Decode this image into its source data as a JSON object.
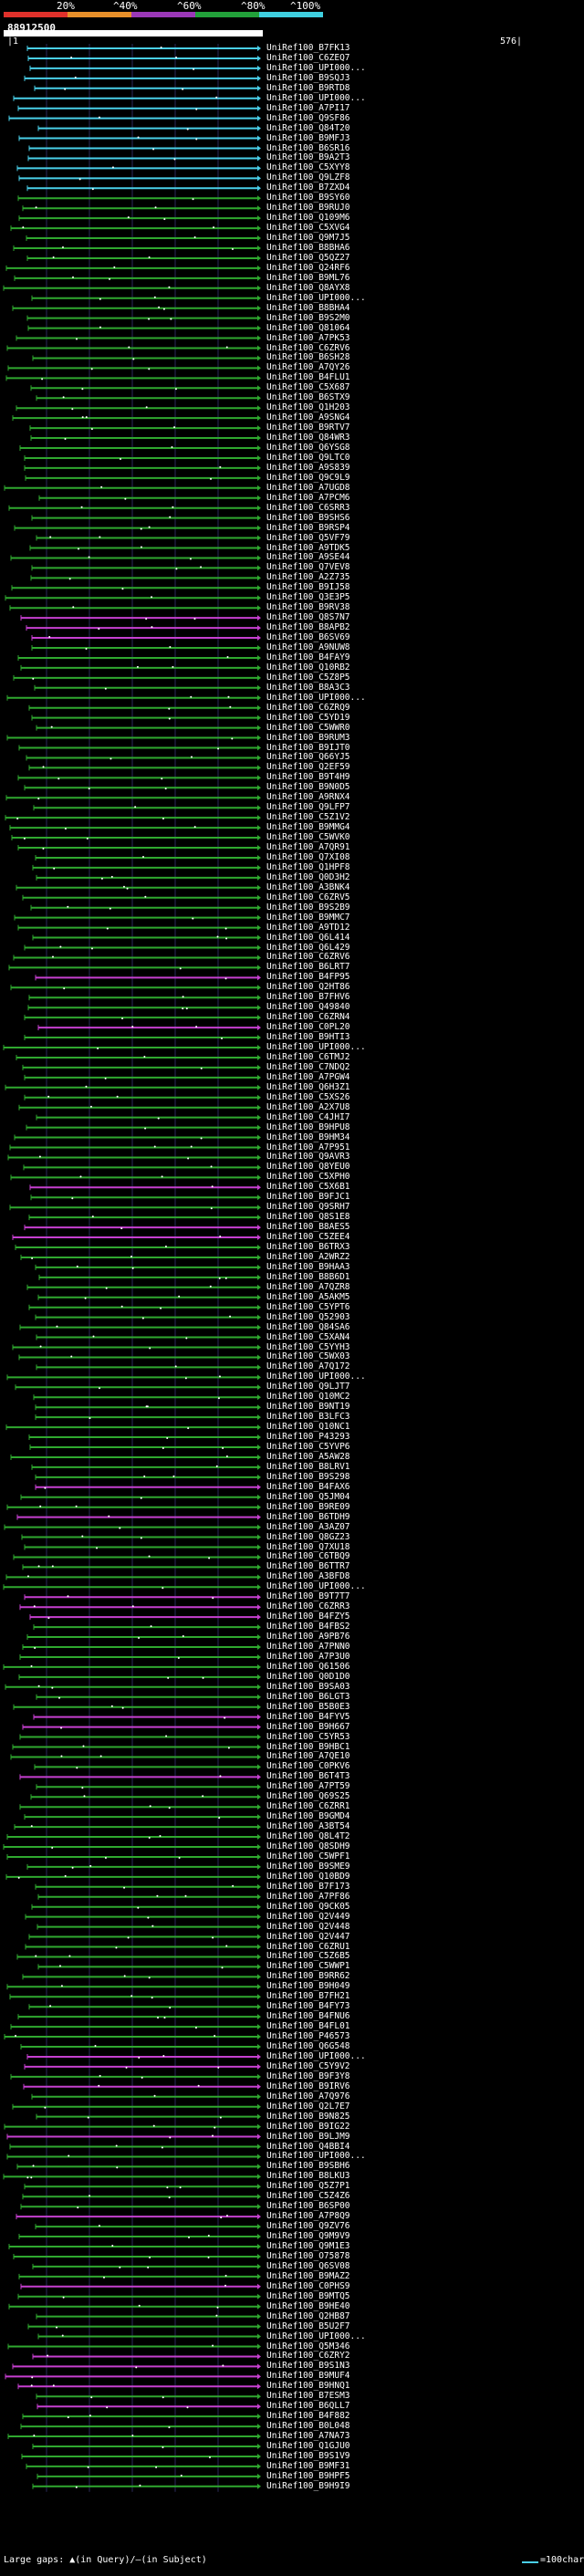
{
  "header": {
    "scale_labels": [
      "20%",
      "^40%",
      "^60%",
      "^80%",
      "^100%"
    ],
    "query_id": "88912500",
    "query_start": "|1",
    "query_end": "576|"
  },
  "colors": {
    "background": "#000000",
    "grid": "#2a2a5a",
    "cyan": "#49cfe8",
    "green": "#2fa82f",
    "magenta": "#c63fd0",
    "scale_red": "#e0312b",
    "scale_orange": "#e8902a",
    "scale_purple": "#9b38b8",
    "scale_green": "#22a13a",
    "scale_cyan": "#3fd0e0"
  },
  "legend": {
    "large_gaps_text": "Large gaps: ▲(in Query)/—(in Subject)",
    "scale_text": "=100char."
  },
  "hits": [
    {
      "label": "UniRef100_B7FK13",
      "color": "cyan"
    },
    {
      "label": "UniRef100_C6ZEQ7",
      "color": "cyan"
    },
    {
      "label": "UniRef100_UPI000...",
      "color": "cyan"
    },
    {
      "label": "UniRef100_B9SQJ3",
      "color": "cyan"
    },
    {
      "label": "UniRef100_B9RTD8",
      "color": "cyan"
    },
    {
      "label": "UniRef100_UPI000...",
      "color": "cyan"
    },
    {
      "label": "UniRef100_A7PI17",
      "color": "cyan"
    },
    {
      "label": "UniRef100_Q9SF86",
      "color": "cyan"
    },
    {
      "label": "UniRef100_Q84T20",
      "color": "cyan"
    },
    {
      "label": "UniRef100_B9MFJ3",
      "color": "cyan"
    },
    {
      "label": "UniRef100_B6SR16",
      "color": "cyan"
    },
    {
      "label": "UniRef100_B9A2T3",
      "color": "cyan"
    },
    {
      "label": "UniRef100_C5XYY8",
      "color": "cyan"
    },
    {
      "label": "UniRef100_Q9LZF8",
      "color": "cyan"
    },
    {
      "label": "UniRef100_B7ZXD4",
      "color": "cyan"
    },
    {
      "label": "UniRef100_B9SY60",
      "color": "green"
    },
    {
      "label": "UniRef100_B9RUJ0",
      "color": "green"
    },
    {
      "label": "UniRef100_Q109M6",
      "color": "green"
    },
    {
      "label": "UniRef100_C5XVG4",
      "color": "green"
    },
    {
      "label": "UniRef100_Q9M7J5",
      "color": "green"
    },
    {
      "label": "UniRef100_B8BHA6",
      "color": "green"
    },
    {
      "label": "UniRef100_Q5QZ27",
      "color": "green"
    },
    {
      "label": "UniRef100_Q24RF6",
      "color": "green"
    },
    {
      "label": "UniRef100_B9ML76",
      "color": "green"
    },
    {
      "label": "UniRef100_Q8AYX8",
      "color": "green"
    },
    {
      "label": "UniRef100_UPI000...",
      "color": "green"
    },
    {
      "label": "UniRef100_B8BHA4",
      "color": "green"
    },
    {
      "label": "UniRef100_B9S2M0",
      "color": "green"
    },
    {
      "label": "UniRef100_Q81064",
      "color": "green"
    },
    {
      "label": "UniRef100_A7PK53",
      "color": "green"
    },
    {
      "label": "UniRef100_C6ZRV6",
      "color": "green"
    },
    {
      "label": "UniRef100_B6SH28",
      "color": "green"
    },
    {
      "label": "UniRef100_A7QY26",
      "color": "green"
    },
    {
      "label": "UniRef100_B4FLU1",
      "color": "green"
    },
    {
      "label": "UniRef100_C5X687",
      "color": "green"
    },
    {
      "label": "UniRef100_B6STX9",
      "color": "green"
    },
    {
      "label": "UniRef100_Q1H203",
      "color": "green"
    },
    {
      "label": "UniRef100_A9SNG4",
      "color": "green"
    },
    {
      "label": "UniRef100_B9RTV7",
      "color": "green"
    },
    {
      "label": "UniRef100_Q84WR3",
      "color": "green"
    },
    {
      "label": "UniRef100_Q6YSG8",
      "color": "green"
    },
    {
      "label": "UniRef100_Q9LTC0",
      "color": "green"
    },
    {
      "label": "UniRef100_A9S839",
      "color": "green"
    },
    {
      "label": "UniRef100_Q9C9L9",
      "color": "green"
    },
    {
      "label": "UniRef100_A7UGD8",
      "color": "green"
    },
    {
      "label": "UniRef100_A7PCM6",
      "color": "green"
    },
    {
      "label": "UniRef100_C6SRR3",
      "color": "green"
    },
    {
      "label": "UniRef100_B9SHS6",
      "color": "green"
    },
    {
      "label": "UniRef100_B9RSP4",
      "color": "green"
    },
    {
      "label": "UniRef100_Q5VF79",
      "color": "green"
    },
    {
      "label": "UniRef100_A9TDK5",
      "color": "green"
    },
    {
      "label": "UniRef100_A9SE44",
      "color": "green"
    },
    {
      "label": "UniRef100_Q7VEV8",
      "color": "green"
    },
    {
      "label": "UniRef100_A2Z735",
      "color": "green"
    },
    {
      "label": "UniRef100_B9IJ58",
      "color": "green"
    },
    {
      "label": "UniRef100_Q3E3P5",
      "color": "green"
    },
    {
      "label": "UniRef100_B9RV38",
      "color": "green"
    },
    {
      "label": "UniRef100_Q8S7N7",
      "color": "magenta"
    },
    {
      "label": "UniRef100_B8APB2",
      "color": "magenta"
    },
    {
      "label": "UniRef100_B6SV69",
      "color": "magenta"
    },
    {
      "label": "UniRef100_A9NUW8",
      "color": "green"
    },
    {
      "label": "UniRef100_B4FAY9",
      "color": "green"
    },
    {
      "label": "UniRef100_Q10RB2",
      "color": "green"
    },
    {
      "label": "UniRef100_C5Z8P5",
      "color": "green"
    },
    {
      "label": "UniRef100_B8A3C3",
      "color": "green"
    },
    {
      "label": "UniRef100_UPI000...",
      "color": "green"
    },
    {
      "label": "UniRef100_C6ZRQ9",
      "color": "green"
    },
    {
      "label": "UniRef100_C5YD19",
      "color": "green"
    },
    {
      "label": "UniRef100_C5WWR0",
      "color": "green"
    },
    {
      "label": "UniRef100_B9RUM3",
      "color": "green"
    },
    {
      "label": "UniRef100_B9IJT0",
      "color": "green"
    },
    {
      "label": "UniRef100_Q66YJ5",
      "color": "green"
    },
    {
      "label": "UniRef100_Q2EF59",
      "color": "green"
    },
    {
      "label": "UniRef100_B9T4H9",
      "color": "green"
    },
    {
      "label": "UniRef100_B9N0D5",
      "color": "green"
    },
    {
      "label": "UniRef100_A9RNX4",
      "color": "green"
    },
    {
      "label": "UniRef100_Q9LFP7",
      "color": "green"
    },
    {
      "label": "UniRef100_C5Z1V2",
      "color": "green"
    },
    {
      "label": "UniRef100_B9MMG4",
      "color": "green"
    },
    {
      "label": "UniRef100_C5WVK0",
      "color": "green"
    },
    {
      "label": "UniRef100_A7QR91",
      "color": "green"
    },
    {
      "label": "UniRef100_Q7XI08",
      "color": "green"
    },
    {
      "label": "UniRef100_Q1HPF8",
      "color": "green"
    },
    {
      "label": "UniRef100_Q0D3H2",
      "color": "green"
    },
    {
      "label": "UniRef100_A3BNK4",
      "color": "green"
    },
    {
      "label": "UniRef100_C6ZRV5",
      "color": "green"
    },
    {
      "label": "UniRef100_B9S2B9",
      "color": "green"
    },
    {
      "label": "UniRef100_B9MMC7",
      "color": "green"
    },
    {
      "label": "UniRef100_A9TD12",
      "color": "green"
    },
    {
      "label": "UniRef100_Q6L414",
      "color": "green"
    },
    {
      "label": "UniRef100_Q6L429",
      "color": "green"
    },
    {
      "label": "UniRef100_C6ZRV6",
      "color": "green"
    },
    {
      "label": "UniRef100_B6LRT7",
      "color": "green"
    },
    {
      "label": "UniRef100_B4FP95",
      "color": "magenta"
    },
    {
      "label": "UniRef100_Q2HT86",
      "color": "green"
    },
    {
      "label": "UniRef100_B7FHV6",
      "color": "green"
    },
    {
      "label": "UniRef100_Q49840",
      "color": "green"
    },
    {
      "label": "UniRef100_C6ZRN4",
      "color": "green"
    },
    {
      "label": "UniRef100_C0PL20",
      "color": "magenta"
    },
    {
      "label": "UniRef100_B9HTI3",
      "color": "green"
    },
    {
      "label": "UniRef100_UPI000...",
      "color": "green"
    },
    {
      "label": "UniRef100_C6TMJ2",
      "color": "green"
    },
    {
      "label": "UniRef100_C7NDQ2",
      "color": "green"
    },
    {
      "label": "UniRef100_A7PGW4",
      "color": "green"
    },
    {
      "label": "UniRef100_Q6H3Z1",
      "color": "green"
    },
    {
      "label": "UniRef100_C5XS26",
      "color": "green"
    },
    {
      "label": "UniRef100_A2X7U8",
      "color": "green"
    },
    {
      "label": "UniRef100_C4JHI7",
      "color": "green"
    },
    {
      "label": "UniRef100_B9HPU8",
      "color": "green"
    },
    {
      "label": "UniRef100_B9HM34",
      "color": "green"
    },
    {
      "label": "UniRef100_A7P951",
      "color": "green"
    },
    {
      "label": "UniRef100_Q9AVR3",
      "color": "green"
    },
    {
      "label": "UniRef100_Q8YEU0",
      "color": "green"
    },
    {
      "label": "UniRef100_C5XPH0",
      "color": "green"
    },
    {
      "label": "UniRef100_C5X6B1",
      "color": "magenta"
    },
    {
      "label": "UniRef100_B9FJC1",
      "color": "green"
    },
    {
      "label": "UniRef100_Q9SRH7",
      "color": "green"
    },
    {
      "label": "UniRef100_Q8S1E8",
      "color": "green"
    },
    {
      "label": "UniRef100_B8AES5",
      "color": "magenta"
    },
    {
      "label": "UniRef100_C5ZEE4",
      "color": "magenta"
    },
    {
      "label": "UniRef100_B6TRX3",
      "color": "green"
    },
    {
      "label": "UniRef100_A2WRZ2",
      "color": "green"
    },
    {
      "label": "UniRef100_B9HAA3",
      "color": "green"
    },
    {
      "label": "UniRef100_B8B6D1",
      "color": "green"
    },
    {
      "label": "UniRef100_A7QZR8",
      "color": "green"
    },
    {
      "label": "UniRef100_A5AKM5",
      "color": "green"
    },
    {
      "label": "UniRef100_C5YPT6",
      "color": "green"
    },
    {
      "label": "UniRef100_Q52903",
      "color": "green"
    },
    {
      "label": "UniRef100_Q84SA6",
      "color": "green"
    },
    {
      "label": "UniRef100_C5XAN4",
      "color": "green"
    },
    {
      "label": "UniRef100_C5YYH3",
      "color": "green"
    },
    {
      "label": "UniRef100_C5WX03",
      "color": "green"
    },
    {
      "label": "UniRef100_A7Q172",
      "color": "green"
    },
    {
      "label": "UniRef100_UPI000...",
      "color": "green"
    },
    {
      "label": "UniRef100_Q9LJT7",
      "color": "green"
    },
    {
      "label": "UniRef100_Q10MC2",
      "color": "green"
    },
    {
      "label": "UniRef100_B9NT19",
      "color": "green"
    },
    {
      "label": "UniRef100_B3LFC3",
      "color": "green"
    },
    {
      "label": "UniRef100_Q10NC1",
      "color": "green"
    },
    {
      "label": "UniRef100_P43293",
      "color": "green"
    },
    {
      "label": "UniRef100_C5YVP6",
      "color": "green"
    },
    {
      "label": "UniRef100_A5AW28",
      "color": "green"
    },
    {
      "label": "UniRef100_B8LRV1",
      "color": "green"
    },
    {
      "label": "UniRef100_B9S298",
      "color": "green"
    },
    {
      "label": "UniRef100_B4FAX6",
      "color": "magenta"
    },
    {
      "label": "UniRef100_Q5JM04",
      "color": "green"
    },
    {
      "label": "UniRef100_B9RE09",
      "color": "green"
    },
    {
      "label": "UniRef100_B6TDH9",
      "color": "magenta"
    },
    {
      "label": "UniRef100_A3AZ07",
      "color": "green"
    },
    {
      "label": "UniRef100_Q8GZ23",
      "color": "green"
    },
    {
      "label": "UniRef100_Q7XU18",
      "color": "green"
    },
    {
      "label": "UniRef100_C6TBQ9",
      "color": "green"
    },
    {
      "label": "UniRef100_B6TTR7",
      "color": "green"
    },
    {
      "label": "UniRef100_A3BFD8",
      "color": "green"
    },
    {
      "label": "UniRef100_UPI000...",
      "color": "green"
    },
    {
      "label": "UniRef100_B9T7T7",
      "color": "magenta"
    },
    {
      "label": "UniRef100_C6ZRR3",
      "color": "magenta"
    },
    {
      "label": "UniRef100_B4FZY5",
      "color": "magenta"
    },
    {
      "label": "UniRef100_B4FBS2",
      "color": "green"
    },
    {
      "label": "UniRef100_A9PB76",
      "color": "green"
    },
    {
      "label": "UniRef100_A7PNN0",
      "color": "green"
    },
    {
      "label": "UniRef100_A7P3U0",
      "color": "green"
    },
    {
      "label": "UniRef100_Q61506",
      "color": "green"
    },
    {
      "label": "UniRef100_Q0D1D0",
      "color": "green"
    },
    {
      "label": "UniRef100_B9SA03",
      "color": "green"
    },
    {
      "label": "UniRef100_B6LGT3",
      "color": "green"
    },
    {
      "label": "UniRef100_B5B0E3",
      "color": "green"
    },
    {
      "label": "UniRef100_B4FYV5",
      "color": "magenta"
    },
    {
      "label": "UniRef100_B9H667",
      "color": "magenta"
    },
    {
      "label": "UniRef100_C5YR53",
      "color": "green"
    },
    {
      "label": "UniRef100_B9HBC1",
      "color": "green"
    },
    {
      "label": "UniRef100_A7QE10",
      "color": "green"
    },
    {
      "label": "UniRef100_C0PKV6",
      "color": "green"
    },
    {
      "label": "UniRef100_B6T4T3",
      "color": "magenta"
    },
    {
      "label": "UniRef100_A7PT59",
      "color": "green"
    },
    {
      "label": "UniRef100_Q69S25",
      "color": "green"
    },
    {
      "label": "UniRef100_C6ZRR1",
      "color": "green"
    },
    {
      "label": "UniRef100_B9GMD4",
      "color": "green"
    },
    {
      "label": "UniRef100_A3BT54",
      "color": "green"
    },
    {
      "label": "UniRef100_Q8L4T2",
      "color": "green"
    },
    {
      "label": "UniRef100_Q8SDH9",
      "color": "green"
    },
    {
      "label": "UniRef100_C5WPF1",
      "color": "green"
    },
    {
      "label": "UniRef100_B9SME9",
      "color": "green"
    },
    {
      "label": "UniRef100_Q10BD9",
      "color": "green"
    },
    {
      "label": "UniRef100_B7F173",
      "color": "green"
    },
    {
      "label": "UniRef100_A7PF86",
      "color": "green"
    },
    {
      "label": "UniRef100_Q9CK05",
      "color": "green"
    },
    {
      "label": "UniRef100_Q2V449",
      "color": "green"
    },
    {
      "label": "UniRef100_Q2V448",
      "color": "green"
    },
    {
      "label": "UniRef100_Q2V447",
      "color": "green"
    },
    {
      "label": "UniRef100_C6ZRU1",
      "color": "green"
    },
    {
      "label": "UniRef100_C5Z6B5",
      "color": "green"
    },
    {
      "label": "UniRef100_C5WWP1",
      "color": "green"
    },
    {
      "label": "UniRef100_B9RR62",
      "color": "green"
    },
    {
      "label": "UniRef100_B9H049",
      "color": "green"
    },
    {
      "label": "UniRef100_B7FH21",
      "color": "green"
    },
    {
      "label": "UniRef100_B4FY73",
      "color": "green"
    },
    {
      "label": "UniRef100_B4FNU6",
      "color": "green"
    },
    {
      "label": "UniRef100_B4FL01",
      "color": "green"
    },
    {
      "label": "UniRef100_P46573",
      "color": "green"
    },
    {
      "label": "UniRef100_Q6G548",
      "color": "green"
    },
    {
      "label": "UniRef100_UPI000...",
      "color": "magenta"
    },
    {
      "label": "UniRef100_C5Y9V2",
      "color": "magenta"
    },
    {
      "label": "UniRef100_B9F3Y8",
      "color": "green"
    },
    {
      "label": "UniRef100_B9IRV6",
      "color": "magenta"
    },
    {
      "label": "UniRef100_A7Q976",
      "color": "green"
    },
    {
      "label": "UniRef100_Q2L7E7",
      "color": "green"
    },
    {
      "label": "UniRef100_B9N825",
      "color": "green"
    },
    {
      "label": "UniRef100_B9IG22",
      "color": "green"
    },
    {
      "label": "UniRef100_B9LJM9",
      "color": "magenta"
    },
    {
      "label": "UniRef100_Q4BBI4",
      "color": "green"
    },
    {
      "label": "UniRef100_UPI000...",
      "color": "green"
    },
    {
      "label": "UniRef100_B9SBH6",
      "color": "green"
    },
    {
      "label": "UniRef100_B8LKU3",
      "color": "green"
    },
    {
      "label": "UniRef100_Q5Z7P1",
      "color": "green"
    },
    {
      "label": "UniRef100_C5Z4Z6",
      "color": "green"
    },
    {
      "label": "UniRef100_B6SP00",
      "color": "green"
    },
    {
      "label": "UniRef100_A7P8Q9",
      "color": "magenta"
    },
    {
      "label": "UniRef100_Q9ZV76",
      "color": "green"
    },
    {
      "label": "UniRef100_Q9M9V9",
      "color": "green"
    },
    {
      "label": "UniRef100_Q9M1E3",
      "color": "green"
    },
    {
      "label": "UniRef100_O75878",
      "color": "green"
    },
    {
      "label": "UniRef100_Q6SV08",
      "color": "green"
    },
    {
      "label": "UniRef100_B9MAZ2",
      "color": "green"
    },
    {
      "label": "UniRef100_C0PHS9",
      "color": "magenta"
    },
    {
      "label": "UniRef100_B9MTQ5",
      "color": "green"
    },
    {
      "label": "UniRef100_B9HE40",
      "color": "green"
    },
    {
      "label": "UniRef100_Q2HB87",
      "color": "green"
    },
    {
      "label": "UniRef100_B5U2F7",
      "color": "green"
    },
    {
      "label": "UniRef100_UPI000...",
      "color": "green"
    },
    {
      "label": "UniRef100_Q5M346",
      "color": "green"
    },
    {
      "label": "UniRef100_C6ZRY2",
      "color": "magenta"
    },
    {
      "label": "UniRef100_B9S1N3",
      "color": "magenta"
    },
    {
      "label": "UniRef100_B9MUF4",
      "color": "magenta"
    },
    {
      "label": "UniRef100_B9HNQ1",
      "color": "magenta"
    },
    {
      "label": "UniRef100_B7ESM3",
      "color": "green"
    },
    {
      "label": "UniRef100_B6QLL7",
      "color": "magenta"
    },
    {
      "label": "UniRef100_B4F882",
      "color": "green"
    },
    {
      "label": "UniRef100_B0L048",
      "color": "green"
    },
    {
      "label": "UniRef100_A7NA73",
      "color": "green"
    },
    {
      "label": "UniRef100_Q1GJU0",
      "color": "green"
    },
    {
      "label": "UniRef100_B9S1V9",
      "color": "green"
    },
    {
      "label": "UniRef100_B9MF31",
      "color": "green"
    },
    {
      "label": "UniRef100_B9HPF5",
      "color": "green"
    },
    {
      "label": "UniRef100_B9H9I9",
      "color": "green"
    }
  ]
}
